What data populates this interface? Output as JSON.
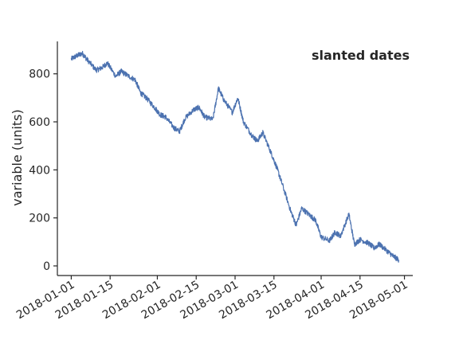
{
  "chart_data": {
    "type": "line",
    "title": "",
    "xlabel": "",
    "ylabel": "variable (units)",
    "annotation": "slanted dates",
    "line_color": "#4c72b0",
    "grid": false,
    "legend": null,
    "x_range": [
      "2017-12-27",
      "2018-05-04"
    ],
    "ylim": [
      -40,
      935
    ],
    "x_ticks": [
      "2018-01-01",
      "2018-01-15",
      "2018-02-01",
      "2018-02-15",
      "2018-03-01",
      "2018-03-15",
      "2018-04-01",
      "2018-04-15",
      "2018-05-01"
    ],
    "y_ticks": [
      "0",
      "200",
      "400",
      "600",
      "800"
    ],
    "series": [
      {
        "x": [
          "2018-01-01",
          "2018-01-03",
          "2018-01-05",
          "2018-01-07",
          "2018-01-10",
          "2018-01-12",
          "2018-01-14",
          "2018-01-17",
          "2018-01-19",
          "2018-01-21",
          "2018-01-24",
          "2018-01-26",
          "2018-01-28",
          "2018-01-31",
          "2018-02-02",
          "2018-02-04",
          "2018-02-07",
          "2018-02-09",
          "2018-02-11",
          "2018-02-14",
          "2018-02-16",
          "2018-02-18",
          "2018-02-21",
          "2018-02-23",
          "2018-02-25",
          "2018-02-28",
          "2018-03-02",
          "2018-03-04",
          "2018-03-07",
          "2018-03-09",
          "2018-03-11",
          "2018-03-14",
          "2018-03-16",
          "2018-03-18",
          "2018-03-21",
          "2018-03-23",
          "2018-03-25",
          "2018-03-28",
          "2018-03-30",
          "2018-04-01",
          "2018-04-04",
          "2018-04-06",
          "2018-04-08",
          "2018-04-11",
          "2018-04-13",
          "2018-04-15",
          "2018-04-18",
          "2018-04-20",
          "2018-04-22",
          "2018-04-25",
          "2018-04-27",
          "2018-04-29"
        ],
        "y": [
          862,
          875,
          885,
          855,
          815,
          825,
          845,
          790,
          810,
          795,
          775,
          720,
          700,
          660,
          630,
          620,
          575,
          560,
          615,
          650,
          660,
          620,
          610,
          740,
          690,
          640,
          700,
          600,
          545,
          520,
          555,
          470,
          410,
          340,
          230,
          170,
          240,
          210,
          190,
          120,
          105,
          140,
          125,
          215,
          90,
          110,
          95,
          75,
          90,
          60,
          40,
          25
        ]
      }
    ]
  }
}
